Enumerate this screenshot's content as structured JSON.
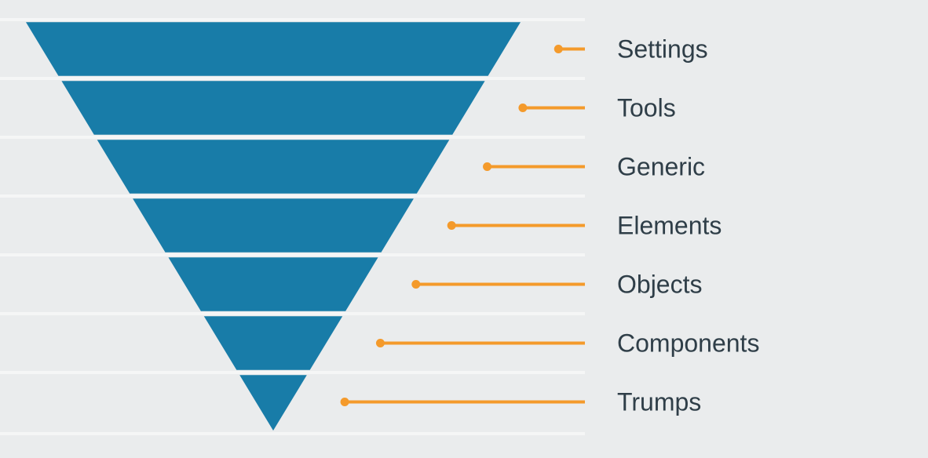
{
  "chart_data": {
    "type": "funnel",
    "title": "",
    "orientation": "inverted-pyramid",
    "levels": [
      {
        "label": "Settings"
      },
      {
        "label": "Tools"
      },
      {
        "label": "Generic"
      },
      {
        "label": "Elements"
      },
      {
        "label": "Objects"
      },
      {
        "label": "Components"
      },
      {
        "label": "Trumps"
      }
    ],
    "legend": "none",
    "labels_position": "right",
    "colors": {
      "segment": "#187CA8",
      "leader": "#F49A2B",
      "label_text": "#2F3E48",
      "background": "#EAECED",
      "row_separator": "#FFFFFF"
    }
  }
}
